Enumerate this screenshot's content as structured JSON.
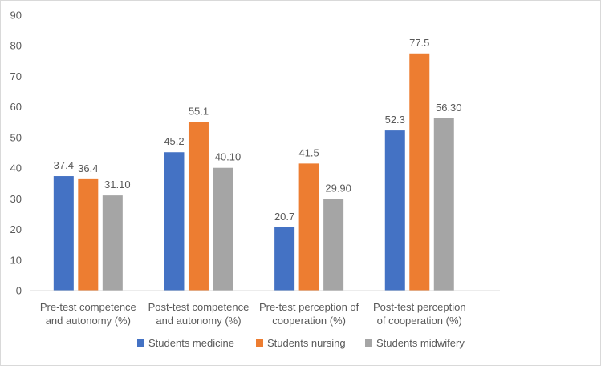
{
  "chart_data": {
    "type": "bar",
    "title": "",
    "xlabel": "",
    "ylabel": "",
    "ylim": [
      0,
      90
    ],
    "yticks": [
      0,
      10,
      20,
      30,
      40,
      50,
      60,
      70,
      80,
      90
    ],
    "grid": false,
    "legend_position": "bottom",
    "categories": [
      [
        "Pre-test competence",
        "and autonomy (%)"
      ],
      [
        "Post-test competence",
        "and autonomy (%)"
      ],
      [
        "Pre-test perception of",
        "cooperation (%)"
      ],
      [
        "Post-test perception",
        "of cooperation (%)"
      ]
    ],
    "series": [
      {
        "name": "Students medicine",
        "color": "#4472c4",
        "values": [
          37.4,
          45.2,
          20.7,
          52.3
        ],
        "labels": [
          "37.4",
          "45.2",
          "20.7",
          "52.3"
        ]
      },
      {
        "name": "Students nursing",
        "color": "#ed7d31",
        "values": [
          36.4,
          55.1,
          41.5,
          77.5
        ],
        "labels": [
          "36.4",
          "55.1",
          "41.5",
          "77.5"
        ]
      },
      {
        "name": "Students midwifery",
        "color": "#a5a5a5",
        "values": [
          31.1,
          40.1,
          29.9,
          56.3
        ],
        "labels": [
          "31.10",
          "40.10",
          "29.90",
          "56.30"
        ]
      }
    ]
  }
}
